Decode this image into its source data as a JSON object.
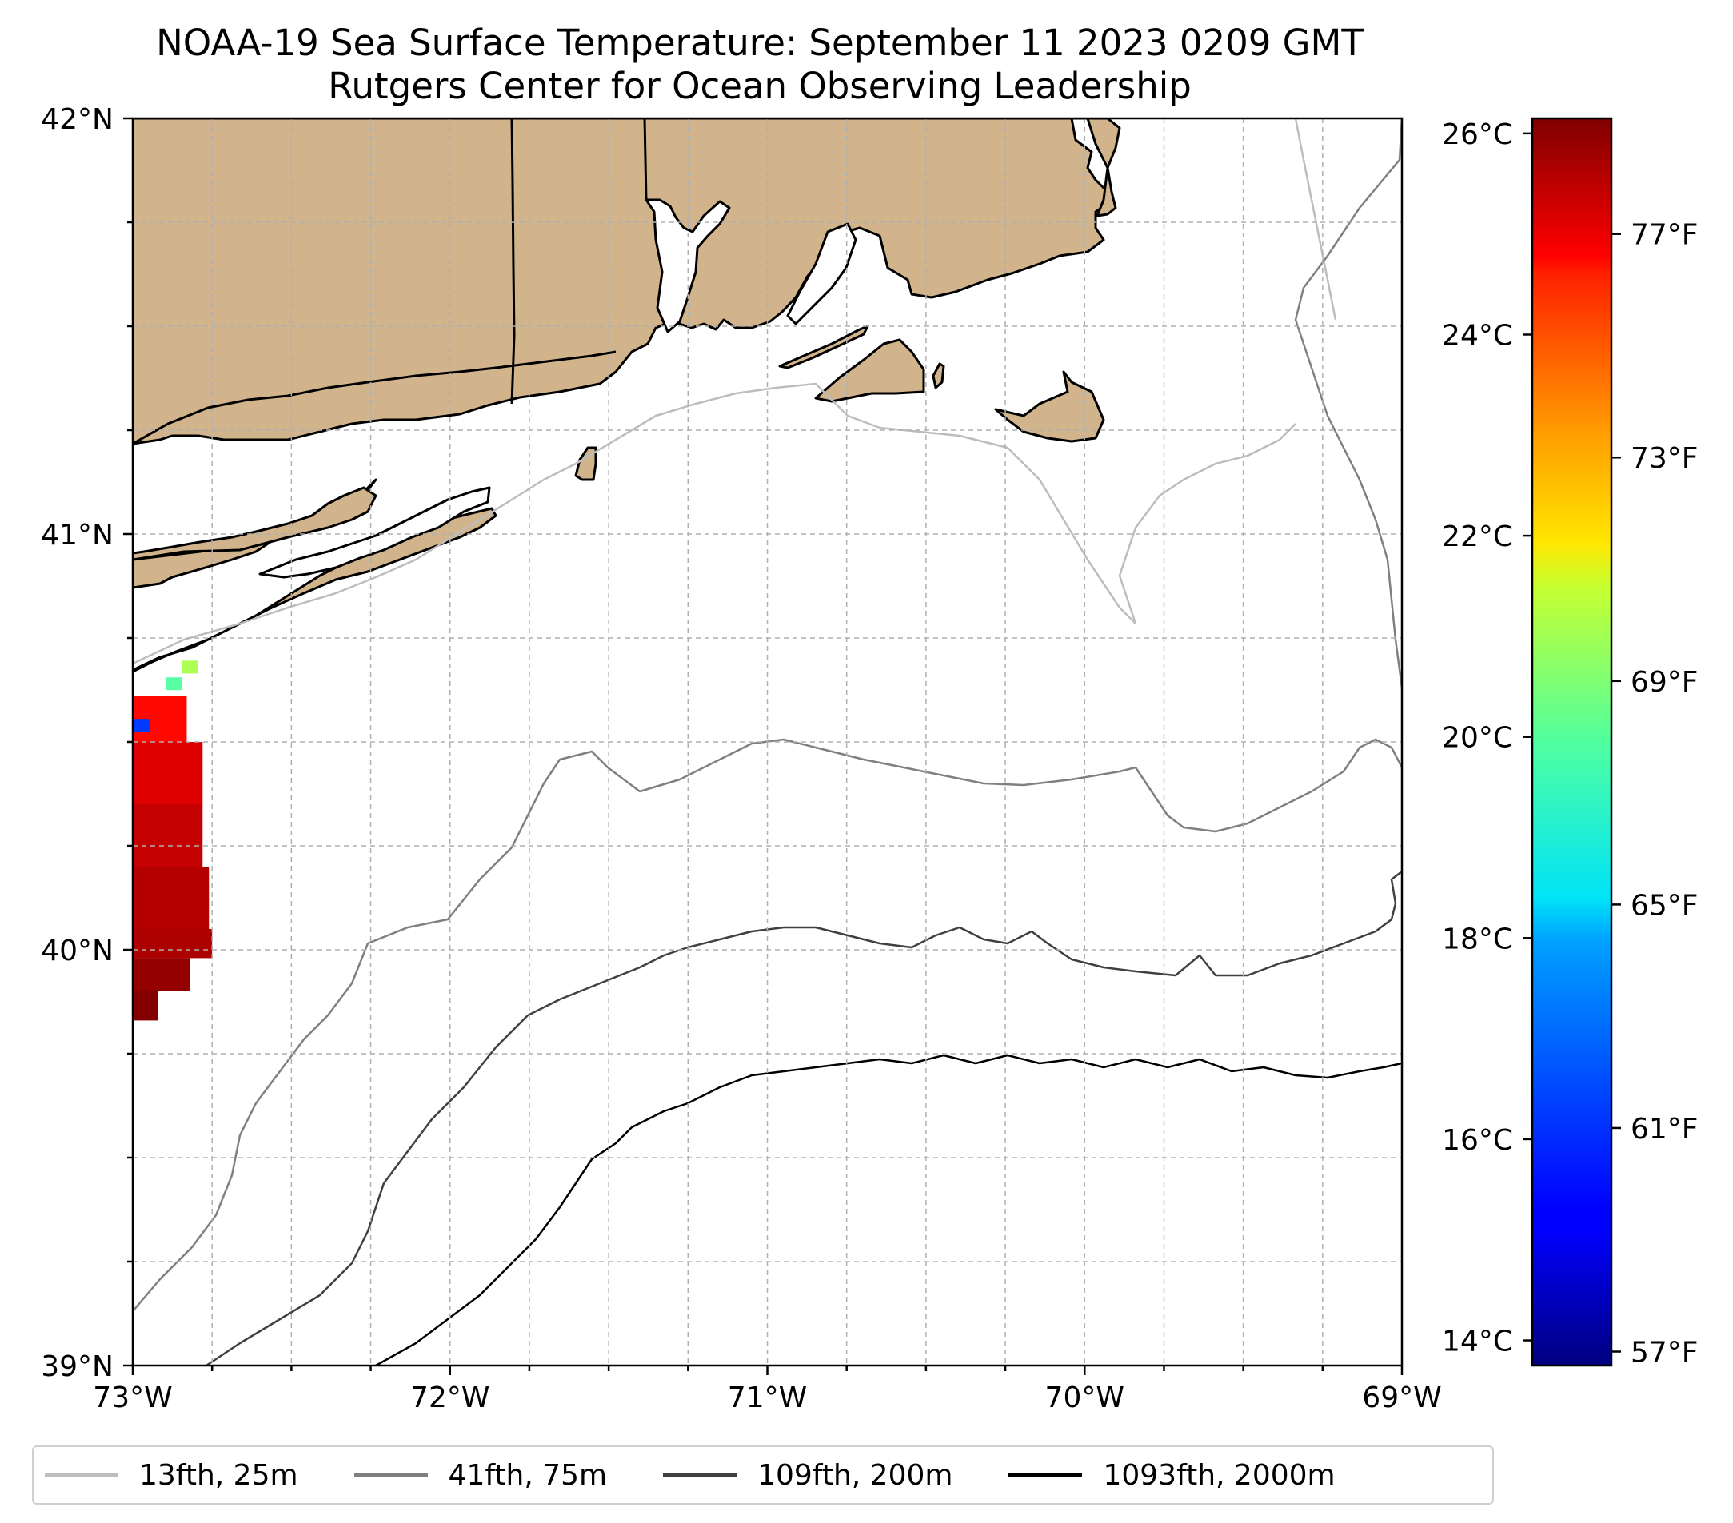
{
  "title": "NOAA-19 Sea Surface Temperature: September 11 2023 0209 GMT",
  "subtitle": "Rutgers Center for Ocean Observing Leadership",
  "axes": {
    "lon_labels": [
      "73°W",
      "72°W",
      "71°W",
      "70°W",
      "69°W"
    ],
    "lat_labels": [
      "42°N",
      "41°N",
      "40°N",
      "39°N"
    ],
    "lon_range": [
      -73,
      -69
    ],
    "lat_range": [
      39,
      42
    ],
    "grid": true
  },
  "colorbar": {
    "colormap": "jet",
    "celsius_labels": [
      "26°C",
      "24°C",
      "22°C",
      "20°C",
      "18°C",
      "16°C",
      "14°C"
    ],
    "fahrenheit_labels": [
      "77°F",
      "73°F",
      "69°F",
      "65°F",
      "61°F",
      "57°F"
    ],
    "range_c": [
      13.75,
      26.15
    ]
  },
  "legend": {
    "placement": "bottom",
    "items": [
      {
        "label": "13fth, 25m",
        "color": "#bdbdbd"
      },
      {
        "label": "41fth, 75m",
        "color": "#808080"
      },
      {
        "label": "109fth, 200m",
        "color": "#404040"
      },
      {
        "label": "1093fth, 2000m",
        "color": "#000000"
      }
    ]
  },
  "colors": {
    "land": "#d2b48c",
    "ocean": "#ffffff",
    "gridline": "#b0b0b0"
  },
  "chart_data": {
    "type": "heatmap",
    "variable": "sea surface temperature",
    "units": "°C",
    "sst_swath_rows": [
      {
        "lat_top": 40.61,
        "lat_bottom": 40.5,
        "lon_west": -73.0,
        "lon_east": -72.83,
        "temp_c": 24.5
      },
      {
        "lat_top": 40.5,
        "lat_bottom": 40.35,
        "lon_west": -73.0,
        "lon_east": -72.78,
        "temp_c": 25.0
      },
      {
        "lat_top": 40.35,
        "lat_bottom": 40.2,
        "lon_west": -73.0,
        "lon_east": -72.78,
        "temp_c": 25.3
      },
      {
        "lat_top": 40.2,
        "lat_bottom": 40.05,
        "lon_west": -73.0,
        "lon_east": -72.76,
        "temp_c": 25.5
      },
      {
        "lat_top": 40.05,
        "lat_bottom": 39.98,
        "lon_west": -73.0,
        "lon_east": -72.75,
        "temp_c": 25.6
      },
      {
        "lat_top": 39.98,
        "lat_bottom": 39.9,
        "lon_west": -73.0,
        "lon_east": -72.82,
        "temp_c": 25.9
      },
      {
        "lat_top": 39.9,
        "lat_bottom": 39.83,
        "lon_west": -73.0,
        "lon_east": -72.92,
        "temp_c": 26.1
      }
    ],
    "sst_cool_patches": [
      {
        "lat": 40.68,
        "lon": -72.82,
        "temp_c": 20.5
      },
      {
        "lat": 40.54,
        "lon": -72.97,
        "temp_c": 16.0
      },
      {
        "lat": 40.64,
        "lon": -72.87,
        "temp_c": 19.5
      }
    ],
    "isobaths": [
      {
        "name": "13fth, 25m",
        "color": "#bdbdbd"
      },
      {
        "name": "41fth, 75m",
        "color": "#808080"
      },
      {
        "name": "109fth, 200m",
        "color": "#404040"
      },
      {
        "name": "1093fth, 2000m",
        "color": "#000000"
      }
    ]
  }
}
